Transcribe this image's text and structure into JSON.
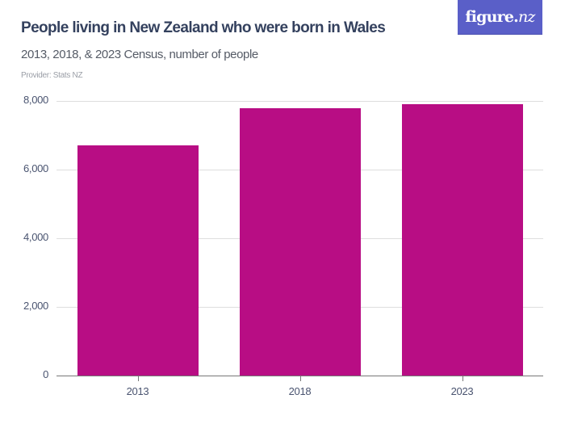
{
  "header": {
    "title": "People living in New Zealand who were born in Wales",
    "subtitle": "2013, 2018, & 2023 Census, number of people",
    "provider": "Provider: Stats NZ",
    "logo_main": "figure.",
    "logo_suffix": "nz",
    "logo_color": "#5a5fc8"
  },
  "chart_data": {
    "type": "bar",
    "title": "People living in New Zealand who were born in Wales",
    "subtitle": "2013, 2018, & 2023 Census, number of people",
    "xlabel": "",
    "ylabel": "",
    "categories": [
      "2013",
      "2018",
      "2023"
    ],
    "values": [
      6710,
      7790,
      7910
    ],
    "ylim": [
      0,
      8000
    ],
    "yticks": [
      0,
      2000,
      4000,
      6000,
      8000
    ],
    "ytick_labels": [
      "0",
      "2,000",
      "4,000",
      "6,000",
      "8,000"
    ],
    "grid": true,
    "legend": "none",
    "bar_color": "#b80d84"
  }
}
